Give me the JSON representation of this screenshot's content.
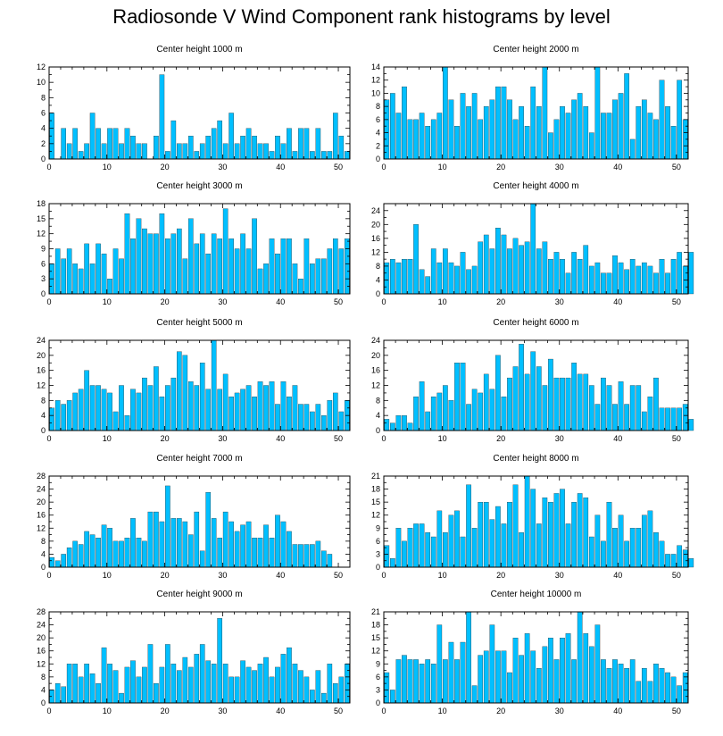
{
  "title": "Radiosonde V Wind Component rank histograms by level",
  "colors": {
    "bar": "#00BFFF",
    "bar_edge": "#1a1a1a",
    "axis": "#000000"
  },
  "chart_data": [
    {
      "type": "bar",
      "title": "Center height 1000 m",
      "xlim": [
        0,
        52
      ],
      "ylim": [
        0,
        12
      ],
      "xticks": [
        0,
        10,
        20,
        30,
        40,
        50
      ],
      "yticks": [
        0,
        2,
        4,
        6,
        8,
        10,
        12
      ],
      "values": [
        6,
        0,
        4,
        2,
        4,
        1,
        2,
        6,
        4,
        2,
        4,
        4,
        2,
        4,
        3,
        2,
        2,
        0,
        3,
        11,
        1,
        5,
        2,
        2,
        3,
        1,
        2,
        3,
        4,
        5,
        2,
        6,
        2,
        3,
        4,
        3,
        2,
        2,
        1,
        3,
        2,
        4,
        1,
        4,
        4,
        1,
        4,
        1,
        1,
        6,
        3,
        1
      ]
    },
    {
      "type": "bar",
      "title": "Center height 2000 m",
      "xlim": [
        0,
        52
      ],
      "ylim": [
        0,
        14
      ],
      "xticks": [
        0,
        10,
        20,
        30,
        40,
        50
      ],
      "yticks": [
        0,
        2,
        4,
        6,
        8,
        10,
        12,
        14
      ],
      "values": [
        9,
        10,
        7,
        11,
        6,
        6,
        7,
        5,
        6,
        7,
        14,
        9,
        5,
        10,
        8,
        10,
        6,
        8,
        9,
        11,
        11,
        9,
        6,
        8,
        5,
        11,
        8,
        14,
        4,
        6,
        8,
        7,
        9,
        10,
        8,
        4,
        14,
        7,
        7,
        9,
        10,
        13,
        3,
        8,
        9,
        7,
        6,
        12,
        8,
        5,
        12,
        6
      ]
    },
    {
      "type": "bar",
      "title": "Center height 3000 m",
      "xlim": [
        0,
        52
      ],
      "ylim": [
        0,
        18
      ],
      "xticks": [
        0,
        10,
        20,
        30,
        40,
        50
      ],
      "yticks": [
        0,
        3,
        6,
        9,
        12,
        15,
        18
      ],
      "values": [
        6,
        9,
        7,
        9,
        6,
        5,
        10,
        6,
        10,
        8,
        3,
        9,
        7,
        16,
        11,
        15,
        13,
        12,
        12,
        16,
        11,
        12,
        13,
        7,
        15,
        10,
        12,
        8,
        12,
        11,
        17,
        11,
        9,
        12,
        9,
        15,
        5,
        6,
        11,
        8,
        11,
        11,
        6,
        3,
        11,
        6,
        7,
        7,
        9,
        11,
        9,
        11
      ]
    },
    {
      "type": "bar",
      "title": "Center height 4000 m",
      "xlim": [
        0,
        52
      ],
      "ylim": [
        0,
        26
      ],
      "xticks": [
        0,
        10,
        20,
        30,
        40,
        50
      ],
      "yticks": [
        0,
        4,
        8,
        12,
        16,
        20,
        24
      ],
      "values": [
        9,
        10,
        9,
        10,
        10,
        20,
        7,
        5,
        13,
        9,
        13,
        9,
        8,
        12,
        7,
        8,
        15,
        17,
        13,
        19,
        17,
        13,
        16,
        14,
        15,
        26,
        13,
        15,
        10,
        12,
        10,
        6,
        12,
        10,
        14,
        8,
        9,
        6,
        6,
        11,
        9,
        7,
        10,
        8,
        9,
        8,
        6,
        10,
        6,
        10,
        12,
        8,
        12
      ]
    },
    {
      "type": "bar",
      "title": "Center height 5000 m",
      "xlim": [
        0,
        52
      ],
      "ylim": [
        0,
        24
      ],
      "xticks": [
        0,
        10,
        20,
        30,
        40,
        50
      ],
      "yticks": [
        0,
        4,
        8,
        12,
        16,
        20,
        24
      ],
      "values": [
        6,
        8,
        7,
        8,
        10,
        11,
        16,
        12,
        12,
        11,
        10,
        5,
        12,
        4,
        11,
        10,
        14,
        12,
        17,
        9,
        12,
        14,
        21,
        20,
        13,
        12,
        18,
        11,
        24,
        11,
        15,
        9,
        10,
        11,
        12,
        9,
        13,
        12,
        13,
        7,
        13,
        9,
        12,
        7,
        7,
        5,
        7,
        4,
        8,
        10,
        5,
        8
      ]
    },
    {
      "type": "bar",
      "title": "Center height 6000 m",
      "xlim": [
        0,
        52
      ],
      "ylim": [
        0,
        24
      ],
      "xticks": [
        0,
        10,
        20,
        30,
        40,
        50
      ],
      "yticks": [
        0,
        4,
        8,
        12,
        16,
        20,
        24
      ],
      "values": [
        3,
        2,
        4,
        4,
        2,
        9,
        13,
        5,
        9,
        10,
        12,
        8,
        18,
        18,
        7,
        11,
        10,
        15,
        11,
        20,
        9,
        14,
        17,
        23,
        15,
        21,
        17,
        12,
        19,
        14,
        14,
        14,
        18,
        15,
        15,
        12,
        7,
        14,
        12,
        7,
        13,
        7,
        12,
        12,
        5,
        9,
        14,
        6,
        6,
        6,
        6,
        7,
        3
      ]
    },
    {
      "type": "bar",
      "title": "Center height 7000 m",
      "xlim": [
        0,
        52
      ],
      "ylim": [
        0,
        28
      ],
      "xticks": [
        0,
        10,
        20,
        30,
        40,
        50
      ],
      "yticks": [
        0,
        4,
        8,
        12,
        16,
        20,
        24,
        28
      ],
      "values": [
        3,
        2,
        4,
        6,
        8,
        7,
        11,
        10,
        9,
        13,
        12,
        8,
        8,
        9,
        15,
        9,
        8,
        17,
        17,
        14,
        25,
        15,
        15,
        14,
        10,
        17,
        5,
        23,
        15,
        9,
        17,
        14,
        11,
        13,
        14,
        9,
        9,
        13,
        9,
        16,
        14,
        11,
        7,
        7,
        7,
        7,
        8,
        5,
        4
      ]
    },
    {
      "type": "bar",
      "title": "Center height 8000 m",
      "xlim": [
        0,
        52
      ],
      "ylim": [
        0,
        21
      ],
      "xticks": [
        0,
        10,
        20,
        30,
        40,
        50
      ],
      "yticks": [
        0,
        3,
        6,
        9,
        12,
        15,
        18,
        21
      ],
      "values": [
        5,
        2,
        9,
        6,
        9,
        10,
        10,
        8,
        7,
        13,
        8,
        12,
        13,
        7,
        19,
        9,
        15,
        15,
        11,
        14,
        10,
        15,
        19,
        8,
        21,
        18,
        10,
        16,
        15,
        17,
        18,
        10,
        15,
        17,
        16,
        7,
        12,
        6,
        15,
        9,
        12,
        6,
        9,
        9,
        12,
        13,
        8,
        6,
        3,
        3,
        5,
        4,
        2
      ]
    },
    {
      "type": "bar",
      "title": "Center height 9000 m",
      "xlim": [
        0,
        52
      ],
      "ylim": [
        0,
        28
      ],
      "xticks": [
        0,
        10,
        20,
        30,
        40,
        50
      ],
      "yticks": [
        0,
        4,
        8,
        12,
        16,
        20,
        24,
        28
      ],
      "values": [
        4,
        6,
        5,
        12,
        12,
        8,
        12,
        9,
        6,
        17,
        12,
        10,
        3,
        11,
        13,
        8,
        11,
        18,
        6,
        11,
        18,
        12,
        10,
        14,
        11,
        15,
        18,
        13,
        12,
        26,
        12,
        8,
        8,
        13,
        11,
        10,
        12,
        14,
        8,
        11,
        15,
        17,
        12,
        10,
        8,
        4,
        10,
        3,
        12,
        6,
        8,
        12
      ]
    },
    {
      "type": "bar",
      "title": "Center height 10000 m",
      "xlim": [
        0,
        52
      ],
      "ylim": [
        0,
        21
      ],
      "xticks": [
        0,
        10,
        20,
        30,
        40,
        50
      ],
      "yticks": [
        0,
        3,
        6,
        9,
        12,
        15,
        18,
        21
      ],
      "values": [
        7,
        3,
        10,
        11,
        10,
        10,
        9,
        10,
        9,
        18,
        10,
        14,
        10,
        14,
        21,
        4,
        11,
        12,
        18,
        12,
        12,
        7,
        15,
        11,
        16,
        12,
        8,
        13,
        15,
        10,
        15,
        16,
        10,
        21,
        16,
        13,
        18,
        10,
        8,
        10,
        9,
        8,
        10,
        5,
        8,
        5,
        9,
        8,
        7,
        6,
        4,
        7
      ]
    }
  ]
}
